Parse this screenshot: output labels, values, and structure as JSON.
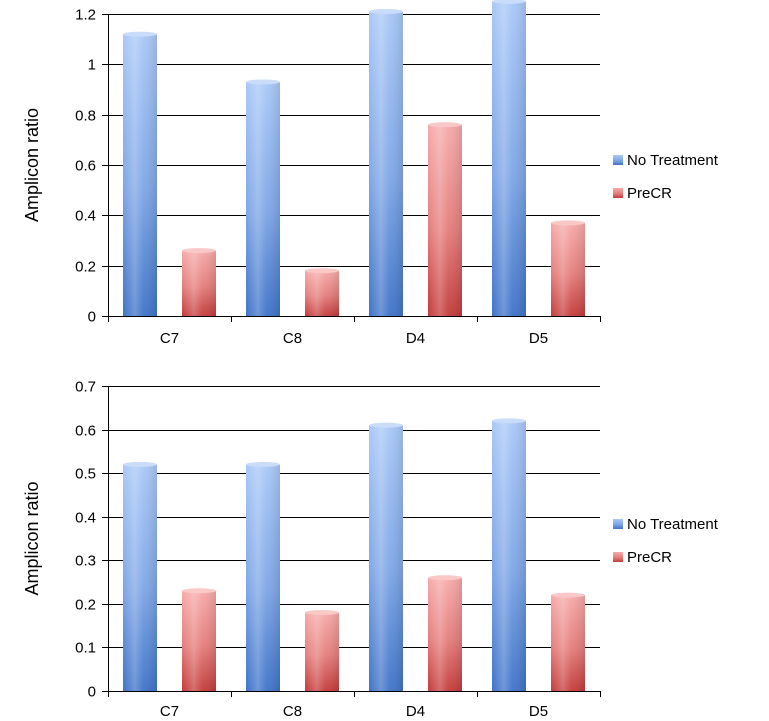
{
  "chart_data": [
    {
      "type": "bar",
      "title": "",
      "xlabel": "",
      "ylabel": "Amplicon ratio",
      "categories": [
        "C7",
        "C8",
        "D4",
        "D5"
      ],
      "ylim": [
        0,
        1.2
      ],
      "yticks": [
        "0",
        "0.2",
        "0.4",
        "0.6",
        "0.8",
        "1",
        "1.2"
      ],
      "grid": true,
      "legend_position": "right",
      "series": [
        {
          "name": "No Treatment",
          "values": [
            1.12,
            0.93,
            1.21,
            1.25
          ],
          "color": "#4f81bd"
        },
        {
          "name": "PreCR",
          "values": [
            0.26,
            0.18,
            0.76,
            0.37
          ],
          "color": "#c0504d"
        }
      ]
    },
    {
      "type": "bar",
      "title": "",
      "xlabel": "",
      "ylabel": "Amplicon ratio",
      "categories": [
        "C7",
        "C8",
        "D4",
        "D5"
      ],
      "ylim": [
        0,
        0.7
      ],
      "yticks": [
        "0",
        "0.1",
        "0.2",
        "0.3",
        "0.4",
        "0.5",
        "0.6",
        "0.7"
      ],
      "grid": true,
      "legend_position": "right",
      "series": [
        {
          "name": "No Treatment",
          "values": [
            0.52,
            0.52,
            0.61,
            0.62
          ],
          "color": "#4f81bd"
        },
        {
          "name": "PreCR",
          "values": [
            0.23,
            0.18,
            0.26,
            0.22
          ],
          "color": "#c0504d"
        }
      ]
    }
  ]
}
